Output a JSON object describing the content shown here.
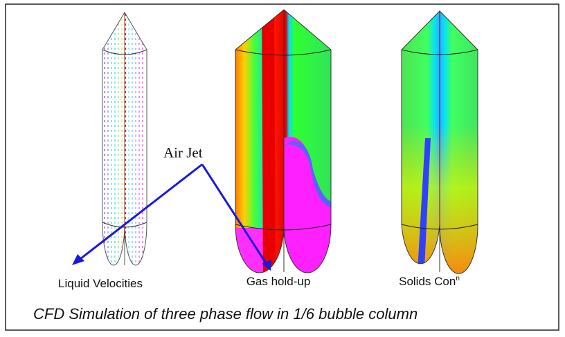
{
  "annotation": "Air Jet",
  "panels": [
    {
      "label": "Liquid Velocities"
    },
    {
      "label": "Gas hold-up"
    },
    {
      "label": "Solids Con",
      "label_sup": "n"
    }
  ],
  "caption": "CFD Simulation of three phase flow in 1/6 bubble column"
}
